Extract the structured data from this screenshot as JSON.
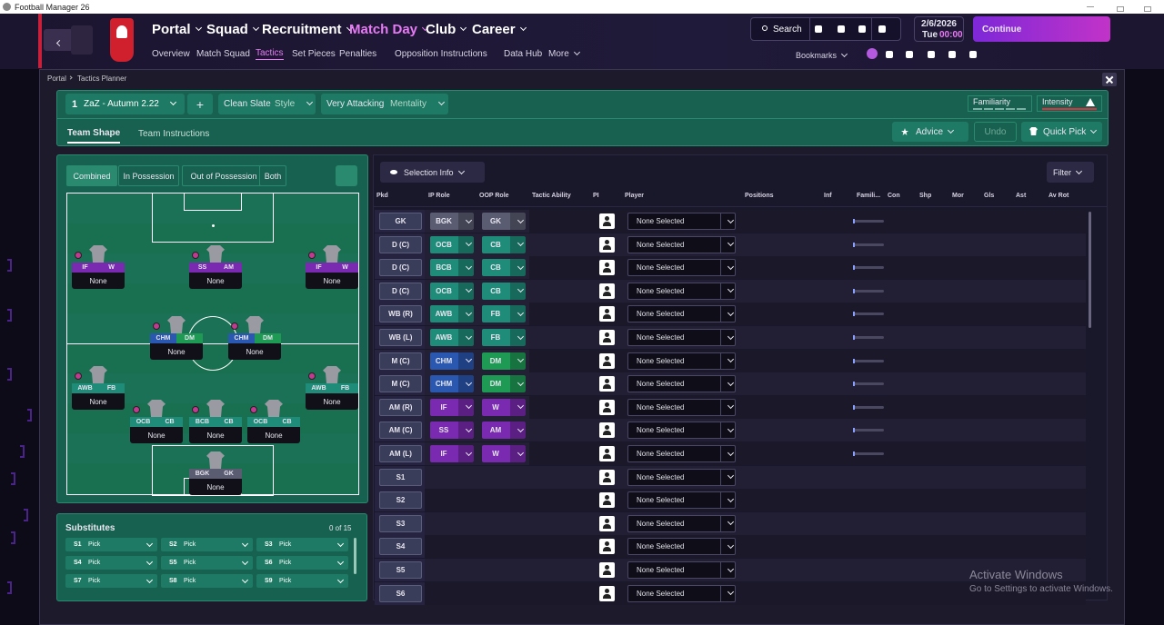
{
  "window": {
    "title": "Football Manager 26"
  },
  "nav": {
    "main": [
      "Portal",
      "Squad",
      "Recruitment",
      "Match Day",
      "Club",
      "Career"
    ],
    "sub": [
      "Overview",
      "Match Squad",
      "Tactics",
      "Set Pieces",
      "Penalties",
      "Opposition Instructions",
      "Data Hub",
      "More"
    ],
    "search": "Search",
    "date": "2/6/2026",
    "day": "Tue",
    "time": "00:00",
    "continue": "Continue",
    "bookmarks": "Bookmarks"
  },
  "breadcrumb": [
    "Portal",
    "Tactics Planner"
  ],
  "toolbar": {
    "tactic_number": "1",
    "tactic_name": "ZaZ - Autumn 2.22",
    "plus": "+",
    "style_value": "Clean Slate",
    "style_label": "Style",
    "mentality_value": "Very Attacking",
    "mentality_label": "Mentality",
    "familiarity": "Familiarity",
    "intensity": "Intensity"
  },
  "tabs": [
    "Team Shape",
    "Team Instructions"
  ],
  "actions": {
    "advice": "Advice",
    "undo": "Undo",
    "quick_pick": "Quick Pick"
  },
  "pitch": {
    "modes": [
      "Combined",
      "In Possession",
      "Out of Possession",
      "Both"
    ],
    "players": [
      {
        "ip": "BGK",
        "oop": "GK",
        "name": "None"
      },
      {
        "ip": "OCB",
        "oop": "CB",
        "name": "None"
      },
      {
        "ip": "BCB",
        "oop": "CB",
        "name": "None"
      },
      {
        "ip": "OCB",
        "oop": "CB",
        "name": "None"
      },
      {
        "ip": "AWB",
        "oop": "FB",
        "name": "None"
      },
      {
        "ip": "AWB",
        "oop": "FB",
        "name": "None"
      },
      {
        "ip": "CHM",
        "oop": "DM",
        "name": "None"
      },
      {
        "ip": "CHM",
        "oop": "DM",
        "name": "None"
      },
      {
        "ip": "IF",
        "oop": "W",
        "name": "None"
      },
      {
        "ip": "SS",
        "oop": "AM",
        "name": "None"
      },
      {
        "ip": "IF",
        "oop": "W",
        "name": "None"
      }
    ]
  },
  "substitutes": {
    "title": "Substitutes",
    "count": "0 of 15",
    "slots": [
      {
        "slot": "S1",
        "pick": "Pick"
      },
      {
        "slot": "S2",
        "pick": "Pick"
      },
      {
        "slot": "S3",
        "pick": "Pick"
      },
      {
        "slot": "S4",
        "pick": "Pick"
      },
      {
        "slot": "S5",
        "pick": "Pick"
      },
      {
        "slot": "S6",
        "pick": "Pick"
      },
      {
        "slot": "S7",
        "pick": "Pick"
      },
      {
        "slot": "S8",
        "pick": "Pick"
      },
      {
        "slot": "S9",
        "pick": "Pick"
      }
    ]
  },
  "table": {
    "selection_info": "Selection Info",
    "filter": "Filter",
    "columns": [
      "Pkd",
      "IP Role",
      "OOP Role",
      "Tactic Ability",
      "PI",
      "Player",
      "Positions",
      "Inf",
      "Famili...",
      "Con",
      "Shp",
      "Mor",
      "Gls",
      "Ast",
      "Av Rot"
    ],
    "rows": [
      {
        "pkd": "GK",
        "ip": "BGK",
        "oop": "GK",
        "player": "None Selected"
      },
      {
        "pkd": "D (C)",
        "ip": "OCB",
        "oop": "CB",
        "player": "None Selected"
      },
      {
        "pkd": "D (C)",
        "ip": "BCB",
        "oop": "CB",
        "player": "None Selected"
      },
      {
        "pkd": "D (C)",
        "ip": "OCB",
        "oop": "CB",
        "player": "None Selected"
      },
      {
        "pkd": "WB (R)",
        "ip": "AWB",
        "oop": "FB",
        "player": "None Selected"
      },
      {
        "pkd": "WB (L)",
        "ip": "AWB",
        "oop": "FB",
        "player": "None Selected"
      },
      {
        "pkd": "M (C)",
        "ip": "CHM",
        "oop": "DM",
        "player": "None Selected"
      },
      {
        "pkd": "M (C)",
        "ip": "CHM",
        "oop": "DM",
        "player": "None Selected"
      },
      {
        "pkd": "AM (R)",
        "ip": "IF",
        "oop": "W",
        "player": "None Selected"
      },
      {
        "pkd": "AM (C)",
        "ip": "SS",
        "oop": "AM",
        "player": "None Selected"
      },
      {
        "pkd": "AM (L)",
        "ip": "IF",
        "oop": "W",
        "player": "None Selected"
      },
      {
        "pkd": "S1",
        "player": "None Selected"
      },
      {
        "pkd": "S2",
        "player": "None Selected"
      },
      {
        "pkd": "S3",
        "player": "None Selected"
      },
      {
        "pkd": "S4",
        "player": "None Selected"
      },
      {
        "pkd": "S5",
        "player": "None Selected"
      },
      {
        "pkd": "S6",
        "player": "None Selected"
      }
    ]
  },
  "watermark": {
    "title": "Activate Windows",
    "text": "Go to Settings to activate Windows."
  }
}
